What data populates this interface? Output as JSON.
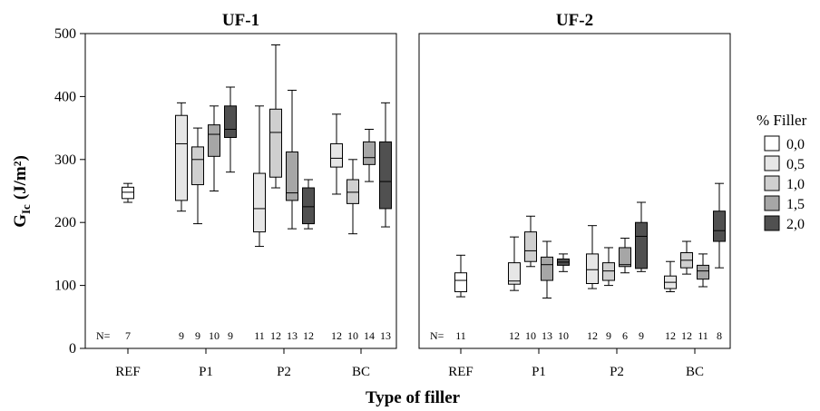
{
  "chart_data": {
    "type": "boxplot",
    "xlabel": "Type of filler",
    "ylabel": "G",
    "ylabel_sub": "Ic",
    "ylabel_unit": "(J/m²)",
    "ylim": [
      0,
      500
    ],
    "yticks": [
      0,
      100,
      200,
      300,
      400,
      500
    ],
    "y_tick_labels": [
      "0",
      "100",
      "200",
      "300",
      "400",
      "500"
    ],
    "grid": false,
    "legend": {
      "title": "% Filler",
      "position": "right",
      "entries": [
        {
          "label": "0,0",
          "color": "#ffffff"
        },
        {
          "label": "0,5",
          "color": "#e6e6e6"
        },
        {
          "label": "1,0",
          "color": "#cfcfcf"
        },
        {
          "label": "1,5",
          "color": "#a6a6a6"
        },
        {
          "label": "2,0",
          "color": "#505050"
        }
      ]
    },
    "n_prefix": "N=",
    "panels": [
      {
        "title": "UF-1",
        "groups": [
          {
            "category": "REF",
            "boxes": [
              {
                "filler": "0,0",
                "min": 232,
                "q1": 238,
                "median": 248,
                "q3": 256,
                "max": 262,
                "n": "7"
              }
            ]
          },
          {
            "category": "P1",
            "boxes": [
              {
                "filler": "0,5",
                "min": 218,
                "q1": 235,
                "median": 325,
                "q3": 370,
                "max": 390,
                "n": "9"
              },
              {
                "filler": "1,0",
                "min": 198,
                "q1": 260,
                "median": 300,
                "q3": 320,
                "max": 350,
                "n": "9"
              },
              {
                "filler": "1,5",
                "min": 250,
                "q1": 305,
                "median": 340,
                "q3": 355,
                "max": 385,
                "n": "10"
              },
              {
                "filler": "2,0",
                "min": 280,
                "q1": 335,
                "median": 348,
                "q3": 385,
                "max": 415,
                "n": "9"
              }
            ]
          },
          {
            "category": "P2",
            "boxes": [
              {
                "filler": "0,5",
                "min": 162,
                "q1": 185,
                "median": 222,
                "q3": 278,
                "max": 385,
                "n": "11"
              },
              {
                "filler": "1,0",
                "min": 255,
                "q1": 272,
                "median": 343,
                "q3": 380,
                "max": 482,
                "n": "12"
              },
              {
                "filler": "1,5",
                "min": 190,
                "q1": 235,
                "median": 247,
                "q3": 312,
                "max": 410,
                "n": "13"
              },
              {
                "filler": "2,0",
                "min": 190,
                "q1": 198,
                "median": 225,
                "q3": 255,
                "max": 268,
                "n": "12"
              }
            ]
          },
          {
            "category": "BC",
            "boxes": [
              {
                "filler": "0,5",
                "min": 245,
                "q1": 288,
                "median": 302,
                "q3": 325,
                "max": 372,
                "n": "12"
              },
              {
                "filler": "1,0",
                "min": 182,
                "q1": 230,
                "median": 248,
                "q3": 268,
                "max": 300,
                "n": "10"
              },
              {
                "filler": "1,5",
                "min": 265,
                "q1": 292,
                "median": 303,
                "q3": 328,
                "max": 348,
                "n": "14"
              },
              {
                "filler": "2,0",
                "min": 193,
                "q1": 222,
                "median": 265,
                "q3": 328,
                "max": 390,
                "n": "13"
              }
            ]
          }
        ]
      },
      {
        "title": "UF-2",
        "groups": [
          {
            "category": "REF",
            "boxes": [
              {
                "filler": "0,0",
                "min": 82,
                "q1": 90,
                "median": 108,
                "q3": 120,
                "max": 148,
                "n": "11"
              }
            ]
          },
          {
            "category": "P1",
            "boxes": [
              {
                "filler": "0,5",
                "min": 92,
                "q1": 102,
                "median": 107,
                "q3": 136,
                "max": 177,
                "n": "12"
              },
              {
                "filler": "1,0",
                "min": 130,
                "q1": 138,
                "median": 155,
                "q3": 185,
                "max": 210,
                "n": "10"
              },
              {
                "filler": "1,5",
                "min": 80,
                "q1": 108,
                "median": 133,
                "q3": 145,
                "max": 170,
                "n": "13"
              },
              {
                "filler": "2,0",
                "min": 122,
                "q1": 132,
                "median": 137,
                "q3": 142,
                "max": 150,
                "n": "10"
              }
            ]
          },
          {
            "category": "P2",
            "boxes": [
              {
                "filler": "0,5",
                "min": 95,
                "q1": 103,
                "median": 125,
                "q3": 150,
                "max": 195,
                "n": "12"
              },
              {
                "filler": "1,0",
                "min": 100,
                "q1": 108,
                "median": 123,
                "q3": 136,
                "max": 160,
                "n": "9"
              },
              {
                "filler": "1,5",
                "min": 120,
                "q1": 130,
                "median": 133,
                "q3": 160,
                "max": 175,
                "n": "6"
              },
              {
                "filler": "2,0",
                "min": 122,
                "q1": 127,
                "median": 178,
                "q3": 200,
                "max": 232,
                "n": "9"
              }
            ]
          },
          {
            "category": "BC",
            "boxes": [
              {
                "filler": "0,5",
                "min": 90,
                "q1": 95,
                "median": 105,
                "q3": 115,
                "max": 138,
                "n": "12"
              },
              {
                "filler": "1,0",
                "min": 118,
                "q1": 128,
                "median": 140,
                "q3": 152,
                "max": 170,
                "n": "12"
              },
              {
                "filler": "1,5",
                "min": 98,
                "q1": 110,
                "median": 123,
                "q3": 132,
                "max": 150,
                "n": "11"
              },
              {
                "filler": "2,0",
                "min": 128,
                "q1": 170,
                "median": 187,
                "q3": 218,
                "max": 262,
                "n": "8"
              }
            ]
          }
        ]
      }
    ]
  }
}
